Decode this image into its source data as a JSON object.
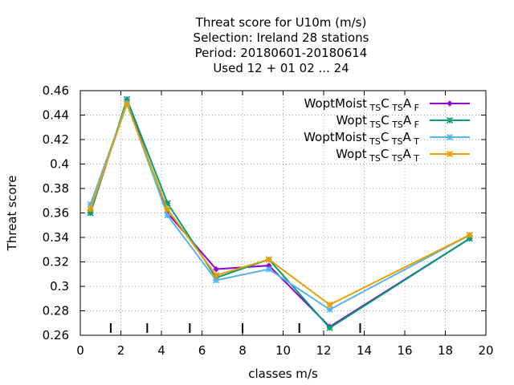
{
  "chart_data": {
    "type": "line",
    "title_lines": [
      "Threat score  for U10m (m/s)",
      "Selection: Ireland     28 stations",
      "Period: 20180601-20180614",
      "Used  12 + 01 02 ... 24"
    ],
    "xlabel": "classes m/s",
    "ylabel": "Threat score",
    "xlim": [
      0,
      20
    ],
    "ylim": [
      0.26,
      0.46
    ],
    "xticks": [
      0,
      2,
      4,
      6,
      8,
      10,
      12,
      14,
      16,
      18,
      20
    ],
    "xtick_labels": [
      "0",
      "2",
      "4",
      "6",
      "8",
      "10",
      "12",
      "14",
      "16",
      "18",
      "20"
    ],
    "yticks": [
      0.26,
      0.28,
      0.3,
      0.32,
      0.34,
      0.36,
      0.38,
      0.4,
      0.42,
      0.44,
      0.46
    ],
    "ytick_labels": [
      "0.26",
      "0.28",
      "0.3",
      "0.32",
      "0.34",
      "0.36",
      "0.38",
      "0.4",
      "0.42",
      "0.44",
      "0.46"
    ],
    "grid": true,
    "legend_position": "top-right",
    "class_bounds": [
      1.5,
      3.3,
      5.4,
      8.0,
      10.8,
      13.8
    ],
    "x": [
      0.5,
      2.3,
      4.3,
      6.7,
      9.3,
      12.3,
      19.2
    ],
    "series": [
      {
        "name": "WoptMoist",
        "sub1": "TS",
        "mid": "C",
        "sub2": "TS",
        "mid2": "A",
        "sub3": "F",
        "color": "#9400d3",
        "marker": "plus",
        "values": [
          0.36,
          0.452,
          0.36,
          0.314,
          0.317,
          0.267,
          0.339
        ]
      },
      {
        "name": "Wopt",
        "sub1": "TS",
        "mid": "C",
        "sub2": "TS",
        "mid2": "A",
        "sub3": "F",
        "color": "#009e73",
        "marker": "cross",
        "values": [
          0.36,
          0.453,
          0.368,
          0.307,
          0.322,
          0.266,
          0.339
        ]
      },
      {
        "name": "WoptMoist",
        "sub1": "TS",
        "mid": "C",
        "sub2": "TS",
        "mid2": "A",
        "sub3": "T",
        "color": "#56b4e9",
        "marker": "star",
        "values": [
          0.367,
          0.45,
          0.358,
          0.305,
          0.314,
          0.281,
          0.342
        ]
      },
      {
        "name": "Wopt",
        "sub1": "TS",
        "mid": "C",
        "sub2": "TS",
        "mid2": "A",
        "sub3": "T",
        "color": "#e69f00",
        "marker": "star",
        "values": [
          0.363,
          0.449,
          0.363,
          0.309,
          0.322,
          0.285,
          0.342
        ]
      }
    ]
  }
}
